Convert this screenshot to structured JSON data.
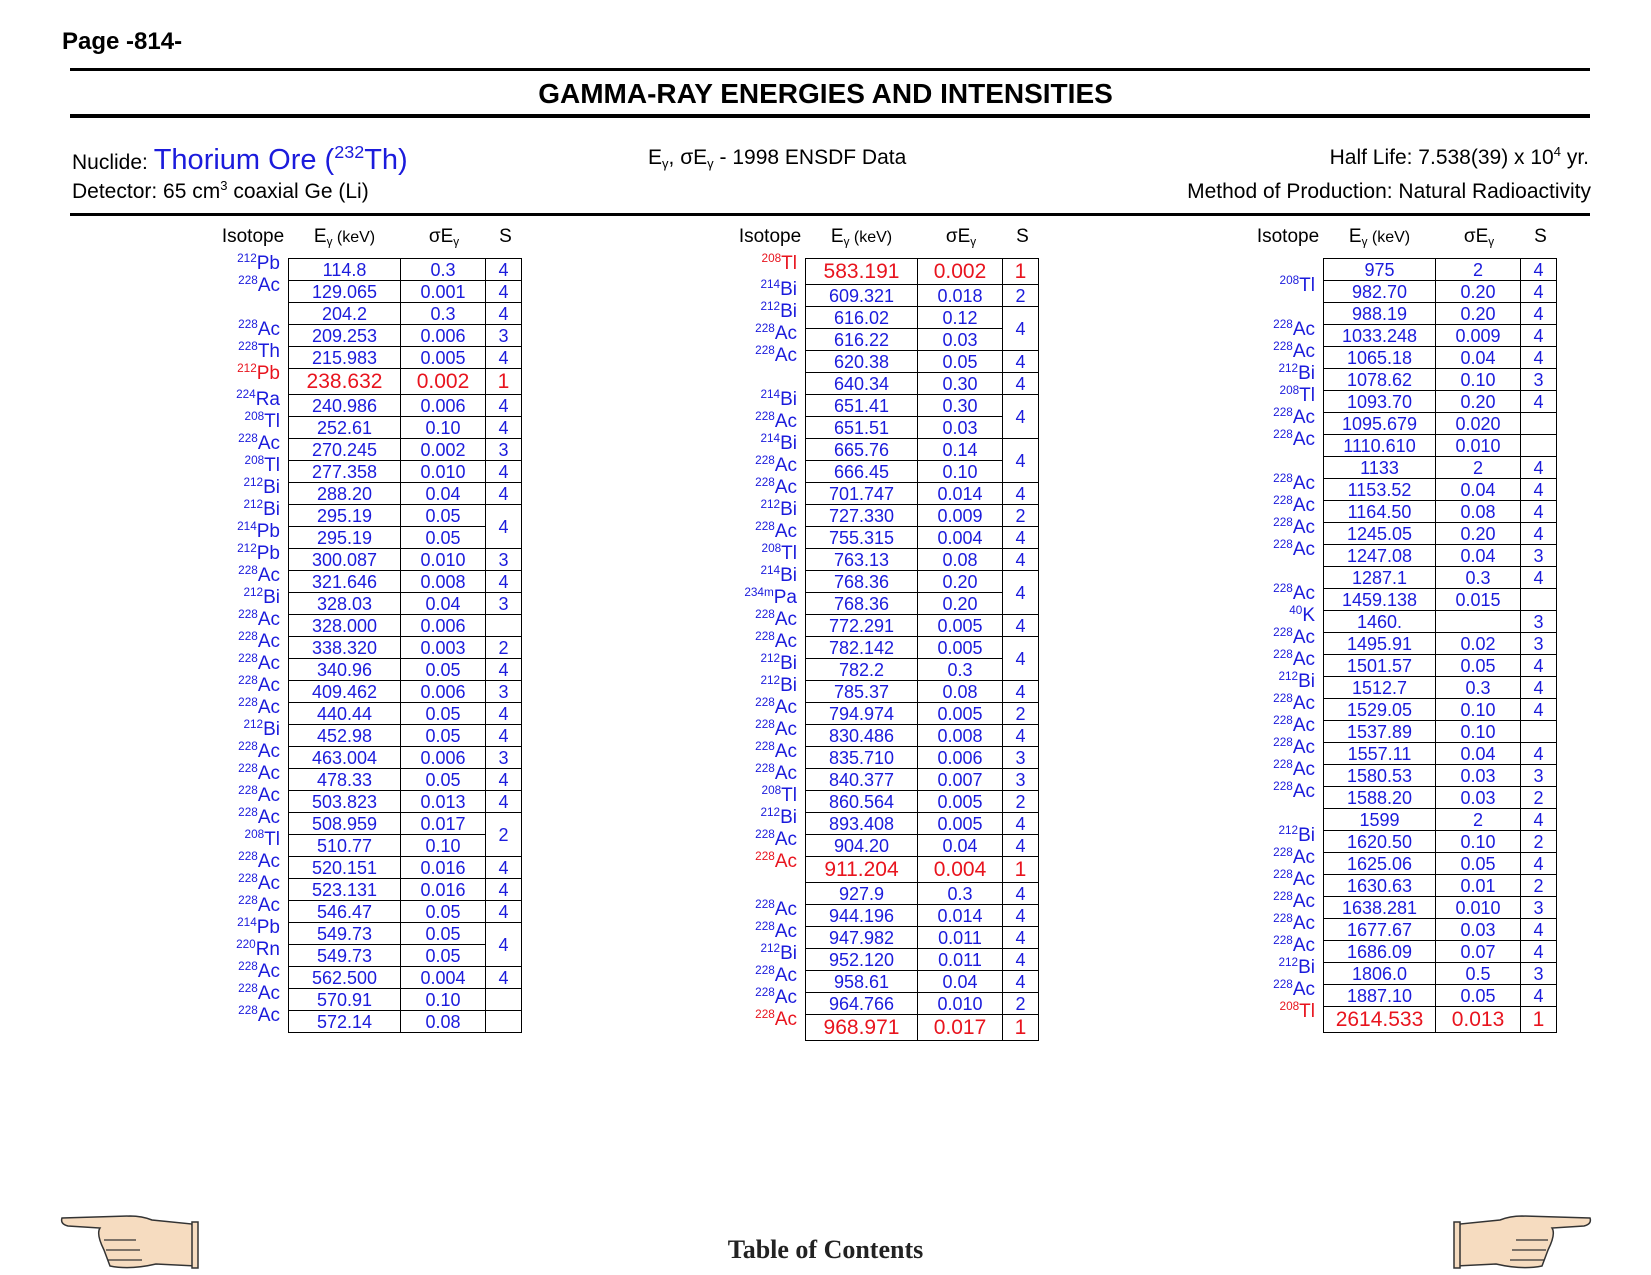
{
  "page_label": "Page -814-",
  "title": "GAMMA-RAY ENERGIES AND INTENSITIES",
  "nuclide": {
    "label": "Nuclide:",
    "name": "Thorium Ore",
    "mass": "232",
    "symbol": "Th"
  },
  "data_source": {
    "prefix": "E",
    "sub": "γ",
    "mid": ", σE",
    "sub2": "γ",
    "text": " - 1998 ENSDF Data"
  },
  "half_life": {
    "label": "Half Life: 7.538(39) x 10",
    "exp": "4",
    "unit": " yr."
  },
  "detector": {
    "label": "Detector: 65 cm",
    "exp": "3",
    "rest": " coaxial Ge (Li)"
  },
  "production": "Method of Production: Natural Radioactivity",
  "headers": {
    "isotope": "Isotope",
    "energy": "E",
    "energy_sub": "γ",
    "energy_unit": " (keV)",
    "sigma": "σE",
    "sigma_sub": "γ",
    "s": "S"
  },
  "footer": {
    "toc": "Table of Contents"
  },
  "icons": {
    "prev": "hand-pointing-left-icon",
    "next": "hand-pointing-right-icon"
  },
  "colors": {
    "blue": "#1b1bdc",
    "red": "#e8141e"
  },
  "columns": [
    {
      "rows": [
        {
          "m": "212",
          "el": "Pb",
          "e": "114.8",
          "s": "0.3",
          "q": "4"
        },
        {
          "m": "228",
          "el": "Ac",
          "e": "129.065",
          "s": "0.001",
          "q": "4"
        },
        {
          "m": "",
          "el": "",
          "e": "204.2",
          "s": "0.3",
          "q": "4"
        },
        {
          "m": "228",
          "el": "Ac",
          "e": "209.253",
          "s": "0.006",
          "q": "3"
        },
        {
          "m": "228",
          "el": "Th",
          "e": "215.983",
          "s": "0.005",
          "q": "4"
        },
        {
          "m": "212",
          "el": "Pb",
          "e": "238.632",
          "s": "0.002",
          "q": "1",
          "red": true
        },
        {
          "m": "224",
          "el": "Ra",
          "e": "240.986",
          "s": "0.006",
          "q": "4"
        },
        {
          "m": "208",
          "el": "Tl",
          "e": "252.61",
          "s": "0.10",
          "q": "4"
        },
        {
          "m": "228",
          "el": "Ac",
          "e": "270.245",
          "s": "0.002",
          "q": "3"
        },
        {
          "m": "208",
          "el": "Tl",
          "e": "277.358",
          "s": "0.010",
          "q": "4"
        },
        {
          "m": "212",
          "el": "Bi",
          "e": "288.20",
          "s": "0.04",
          "q": "4"
        },
        {
          "m": "212",
          "el": "Bi",
          "e": "295.19",
          "s": "0.05",
          "q": "4",
          "span": 2
        },
        {
          "m": "214",
          "el": "Pb",
          "e": "295.19",
          "s": "0.05",
          "q": null
        },
        {
          "m": "212",
          "el": "Pb",
          "e": "300.087",
          "s": "0.010",
          "q": "3"
        },
        {
          "m": "228",
          "el": "Ac",
          "e": "321.646",
          "s": "0.008",
          "q": "4"
        },
        {
          "m": "212",
          "el": "Bi",
          "e": "328.03",
          "s": "0.04",
          "q": "3"
        },
        {
          "m": "228",
          "el": "Ac",
          "e": "328.000",
          "s": "0.006",
          "q": ""
        },
        {
          "m": "228",
          "el": "Ac",
          "e": "338.320",
          "s": "0.003",
          "q": "2"
        },
        {
          "m": "228",
          "el": "Ac",
          "e": "340.96",
          "s": "0.05",
          "q": "4"
        },
        {
          "m": "228",
          "el": "Ac",
          "e": "409.462",
          "s": "0.006",
          "q": "3"
        },
        {
          "m": "228",
          "el": "Ac",
          "e": "440.44",
          "s": "0.05",
          "q": "4"
        },
        {
          "m": "212",
          "el": "Bi",
          "e": "452.98",
          "s": "0.05",
          "q": "4"
        },
        {
          "m": "228",
          "el": "Ac",
          "e": "463.004",
          "s": "0.006",
          "q": "3"
        },
        {
          "m": "228",
          "el": "Ac",
          "e": "478.33",
          "s": "0.05",
          "q": "4"
        },
        {
          "m": "228",
          "el": "Ac",
          "e": "503.823",
          "s": "0.013",
          "q": "4"
        },
        {
          "m": "228",
          "el": "Ac",
          "e": "508.959",
          "s": "0.017",
          "q": "2",
          "span": 2
        },
        {
          "m": "208",
          "el": "Tl",
          "e": "510.77",
          "s": "0.10",
          "q": null
        },
        {
          "m": "228",
          "el": "Ac",
          "e": "520.151",
          "s": "0.016",
          "q": "4"
        },
        {
          "m": "228",
          "el": "Ac",
          "e": "523.131",
          "s": "0.016",
          "q": "4"
        },
        {
          "m": "228",
          "el": "Ac",
          "e": "546.47",
          "s": "0.05",
          "q": "4"
        },
        {
          "m": "214",
          "el": "Pb",
          "e": "549.73",
          "s": "0.05",
          "q": "4",
          "span": 2
        },
        {
          "m": "220",
          "el": "Rn",
          "e": "549.73",
          "s": "0.05",
          "q": null
        },
        {
          "m": "228",
          "el": "Ac",
          "e": "562.500",
          "s": "0.004",
          "q": "4"
        },
        {
          "m": "228",
          "el": "Ac",
          "e": "570.91",
          "s": "0.10",
          "q": ""
        },
        {
          "m": "228",
          "el": "Ac",
          "e": "572.14",
          "s": "0.08",
          "q": ""
        }
      ]
    },
    {
      "rows": [
        {
          "m": "208",
          "el": "Tl",
          "e": "583.191",
          "s": "0.002",
          "q": "1",
          "red": true
        },
        {
          "m": "214",
          "el": "Bi",
          "e": "609.321",
          "s": "0.018",
          "q": "2"
        },
        {
          "m": "212",
          "el": "Bi",
          "e": "616.02",
          "s": "0.12",
          "q": "4",
          "span": 2
        },
        {
          "m": "228",
          "el": "Ac",
          "e": "616.22",
          "s": "0.03",
          "q": null
        },
        {
          "m": "228",
          "el": "Ac",
          "e": "620.38",
          "s": "0.05",
          "q": "4"
        },
        {
          "m": "",
          "el": "",
          "e": "640.34",
          "s": "0.30",
          "q": "4"
        },
        {
          "m": "214",
          "el": "Bi",
          "e": "651.41",
          "s": "0.30",
          "q": "4",
          "span": 2
        },
        {
          "m": "228",
          "el": "Ac",
          "e": "651.51",
          "s": "0.03",
          "q": null
        },
        {
          "m": "214",
          "el": "Bi",
          "e": "665.76",
          "s": "0.14",
          "q": "4",
          "span": 2
        },
        {
          "m": "228",
          "el": "Ac",
          "e": "666.45",
          "s": "0.10",
          "q": null
        },
        {
          "m": "228",
          "el": "Ac",
          "e": "701.747",
          "s": "0.014",
          "q": "4"
        },
        {
          "m": "212",
          "el": "Bi",
          "e": "727.330",
          "s": "0.009",
          "q": "2"
        },
        {
          "m": "228",
          "el": "Ac",
          "e": "755.315",
          "s": "0.004",
          "q": "4"
        },
        {
          "m": "208",
          "el": "Tl",
          "e": "763.13",
          "s": "0.08",
          "q": "4"
        },
        {
          "m": "214",
          "el": "Bi",
          "e": "768.36",
          "s": "0.20",
          "q": "4",
          "span": 2
        },
        {
          "m": "234m",
          "el": "Pa",
          "e": "768.36",
          "s": "0.20",
          "q": null
        },
        {
          "m": "228",
          "el": "Ac",
          "e": "772.291",
          "s": "0.005",
          "q": "4"
        },
        {
          "m": "228",
          "el": "Ac",
          "e": "782.142",
          "s": "0.005",
          "q": "4",
          "span": 2
        },
        {
          "m": "212",
          "el": "Bi",
          "e": "782.2",
          "s": "0.3",
          "q": null
        },
        {
          "m": "212",
          "el": "Bi",
          "e": "785.37",
          "s": "0.08",
          "q": "4"
        },
        {
          "m": "228",
          "el": "Ac",
          "e": "794.974",
          "s": "0.005",
          "q": "2"
        },
        {
          "m": "228",
          "el": "Ac",
          "e": "830.486",
          "s": "0.008",
          "q": "4"
        },
        {
          "m": "228",
          "el": "Ac",
          "e": "835.710",
          "s": "0.006",
          "q": "3"
        },
        {
          "m": "228",
          "el": "Ac",
          "e": "840.377",
          "s": "0.007",
          "q": "3"
        },
        {
          "m": "208",
          "el": "Tl",
          "e": "860.564",
          "s": "0.005",
          "q": "2"
        },
        {
          "m": "212",
          "el": "Bi",
          "e": "893.408",
          "s": "0.005",
          "q": "4"
        },
        {
          "m": "228",
          "el": "Ac",
          "e": "904.20",
          "s": "0.04",
          "q": "4"
        },
        {
          "m": "228",
          "el": "Ac",
          "e": "911.204",
          "s": "0.004",
          "q": "1",
          "red": true
        },
        {
          "m": "",
          "el": "",
          "e": "927.9",
          "s": "0.3",
          "q": "4"
        },
        {
          "m": "228",
          "el": "Ac",
          "e": "944.196",
          "s": "0.014",
          "q": "4"
        },
        {
          "m": "228",
          "el": "Ac",
          "e": "947.982",
          "s": "0.011",
          "q": "4"
        },
        {
          "m": "212",
          "el": "Bi",
          "e": "952.120",
          "s": "0.011",
          "q": "4"
        },
        {
          "m": "228",
          "el": "Ac",
          "e": "958.61",
          "s": "0.04",
          "q": "4"
        },
        {
          "m": "228",
          "el": "Ac",
          "e": "964.766",
          "s": "0.010",
          "q": "2"
        },
        {
          "m": "228",
          "el": "Ac",
          "e": "968.971",
          "s": "0.017",
          "q": "1",
          "red": true
        }
      ]
    },
    {
      "rows": [
        {
          "m": "",
          "el": "",
          "e": "975",
          "s": "2",
          "q": "4"
        },
        {
          "m": "208",
          "el": "Tl",
          "e": "982.70",
          "s": "0.20",
          "q": "4"
        },
        {
          "m": "",
          "el": "",
          "e": "988.19",
          "s": "0.20",
          "q": "4"
        },
        {
          "m": "228",
          "el": "Ac",
          "e": "1033.248",
          "s": "0.009",
          "q": "4"
        },
        {
          "m": "228",
          "el": "Ac",
          "e": "1065.18",
          "s": "0.04",
          "q": "4"
        },
        {
          "m": "212",
          "el": "Bi",
          "e": "1078.62",
          "s": "0.10",
          "q": "3"
        },
        {
          "m": "208",
          "el": "Tl",
          "e": "1093.70",
          "s": "0.20",
          "q": "4"
        },
        {
          "m": "228",
          "el": "Ac",
          "e": "1095.679",
          "s": "0.020",
          "q": ""
        },
        {
          "m": "228",
          "el": "Ac",
          "e": "1110.610",
          "s": "0.010",
          "q": ""
        },
        {
          "m": "",
          "el": "",
          "e": "1133",
          "s": "2",
          "q": "4"
        },
        {
          "m": "228",
          "el": "Ac",
          "e": "1153.52",
          "s": "0.04",
          "q": "4"
        },
        {
          "m": "228",
          "el": "Ac",
          "e": "1164.50",
          "s": "0.08",
          "q": "4"
        },
        {
          "m": "228",
          "el": "Ac",
          "e": "1245.05",
          "s": "0.20",
          "q": "4"
        },
        {
          "m": "228",
          "el": "Ac",
          "e": "1247.08",
          "s": "0.04",
          "q": "3"
        },
        {
          "m": "",
          "el": "",
          "e": "1287.1",
          "s": "0.3",
          "q": "4"
        },
        {
          "m": "228",
          "el": "Ac",
          "e": "1459.138",
          "s": "0.015",
          "q": ""
        },
        {
          "m": "40",
          "el": "K",
          "e": "1460.",
          "s": "",
          "q": "3"
        },
        {
          "m": "228",
          "el": "Ac",
          "e": "1495.91",
          "s": "0.02",
          "q": "3"
        },
        {
          "m": "228",
          "el": "Ac",
          "e": "1501.57",
          "s": "0.05",
          "q": "4"
        },
        {
          "m": "212",
          "el": "Bi",
          "e": "1512.7",
          "s": "0.3",
          "q": "4"
        },
        {
          "m": "228",
          "el": "Ac",
          "e": "1529.05",
          "s": "0.10",
          "q": "4"
        },
        {
          "m": "228",
          "el": "Ac",
          "e": "1537.89",
          "s": "0.10",
          "q": ""
        },
        {
          "m": "228",
          "el": "Ac",
          "e": "1557.11",
          "s": "0.04",
          "q": "4"
        },
        {
          "m": "228",
          "el": "Ac",
          "e": "1580.53",
          "s": "0.03",
          "q": "3"
        },
        {
          "m": "228",
          "el": "Ac",
          "e": "1588.20",
          "s": "0.03",
          "q": "2"
        },
        {
          "m": "",
          "el": "",
          "e": "1599",
          "s": "2",
          "q": "4"
        },
        {
          "m": "212",
          "el": "Bi",
          "e": "1620.50",
          "s": "0.10",
          "q": "2"
        },
        {
          "m": "228",
          "el": "Ac",
          "e": "1625.06",
          "s": "0.05",
          "q": "4"
        },
        {
          "m": "228",
          "el": "Ac",
          "e": "1630.63",
          "s": "0.01",
          "q": "2"
        },
        {
          "m": "228",
          "el": "Ac",
          "e": "1638.281",
          "s": "0.010",
          "q": "3"
        },
        {
          "m": "228",
          "el": "Ac",
          "e": "1677.67",
          "s": "0.03",
          "q": "4"
        },
        {
          "m": "228",
          "el": "Ac",
          "e": "1686.09",
          "s": "0.07",
          "q": "4"
        },
        {
          "m": "212",
          "el": "Bi",
          "e": "1806.0",
          "s": "0.5",
          "q": "3"
        },
        {
          "m": "228",
          "el": "Ac",
          "e": "1887.10",
          "s": "0.05",
          "q": "4"
        },
        {
          "m": "208",
          "el": "Tl",
          "e": "2614.533",
          "s": "0.013",
          "q": "1",
          "red": true
        }
      ]
    }
  ]
}
